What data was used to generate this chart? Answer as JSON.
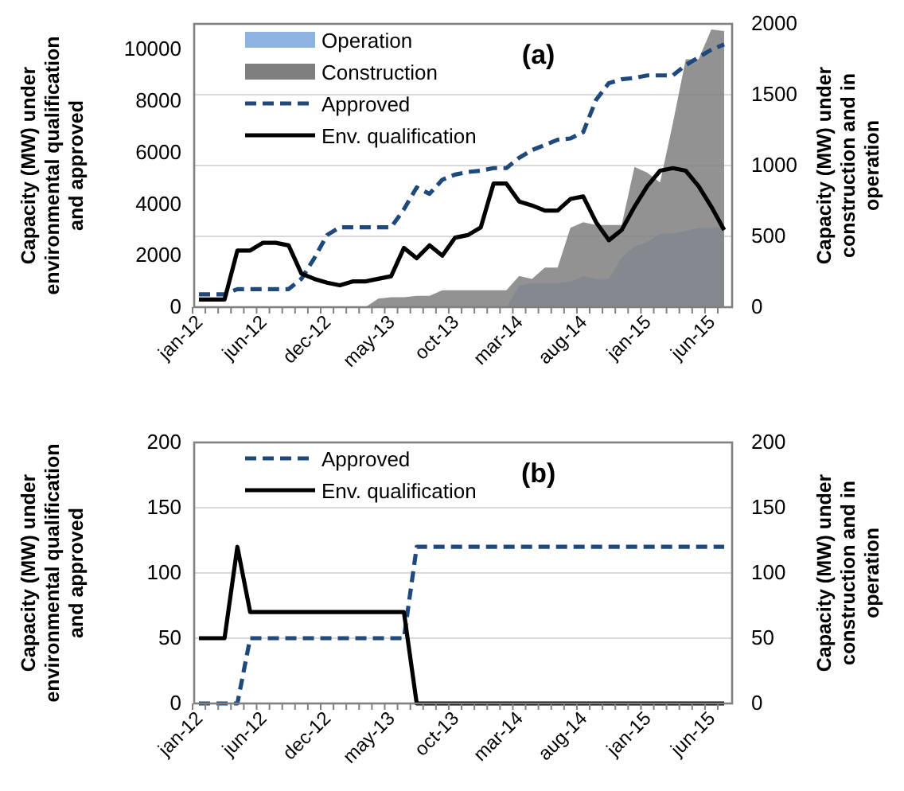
{
  "chart_data": [
    {
      "type": "line",
      "title": "(a)",
      "ylabel": "Capacity (MW) under environmental qualification and approved",
      "y2label": "Capacity (MW) under construction and in operation",
      "categories": [
        "jan-12",
        null,
        null,
        null,
        null,
        "jun-12",
        null,
        null,
        null,
        null,
        "dec-12",
        null,
        null,
        null,
        null,
        "may-13",
        null,
        null,
        null,
        null,
        "oct-13",
        null,
        null,
        null,
        null,
        "mar-14",
        null,
        null,
        null,
        null,
        "aug-14",
        null,
        null,
        null,
        null,
        "jan-15",
        null,
        null,
        null,
        null,
        "jun-15",
        null
      ],
      "ylim": [
        0,
        11000
      ],
      "yticks": [
        0,
        2000,
        4000,
        6000,
        8000,
        10000
      ],
      "y2lim": [
        0,
        2000
      ],
      "y2ticks": [
        0,
        500,
        1000,
        1500,
        2000
      ],
      "grid": true,
      "legend": "top left",
      "marker": "none",
      "series": [
        {
          "name": "Operation",
          "type": "area",
          "axis": "y2",
          "color": "#8db4e2",
          "values": [
            0,
            0,
            0,
            0,
            0,
            0,
            0,
            0,
            0,
            0,
            0,
            0,
            0,
            0,
            0,
            0,
            0,
            0,
            0,
            0,
            0,
            0,
            0,
            0,
            0,
            150,
            170,
            170,
            170,
            180,
            220,
            200,
            200,
            350,
            430,
            460,
            520,
            520,
            540,
            560,
            560,
            570
          ]
        },
        {
          "name": "Construction",
          "type": "area",
          "axis": "y2",
          "color": "#7f7f7f",
          "values": [
            0,
            0,
            0,
            0,
            0,
            0,
            0,
            0,
            0,
            0,
            0,
            0,
            0,
            0,
            60,
            70,
            70,
            80,
            80,
            120,
            120,
            120,
            120,
            120,
            120,
            220,
            200,
            280,
            280,
            560,
            600,
            580,
            580,
            580,
            990,
            950,
            880,
            1300,
            1750,
            1750,
            1960,
            1950
          ]
        },
        {
          "name": "Approved",
          "color": "#1f497d",
          "line_style": "dashed",
          "values": [
            500,
            500,
            500,
            700,
            700,
            700,
            700,
            700,
            1100,
            1900,
            2800,
            3100,
            3100,
            3100,
            3100,
            3100,
            3800,
            4650,
            4400,
            4950,
            5150,
            5250,
            5300,
            5400,
            5400,
            5800,
            6100,
            6300,
            6500,
            6550,
            6800,
            8050,
            8700,
            8850,
            8900,
            9000,
            9000,
            9000,
            9400,
            9700,
            10000,
            10200
          ]
        },
        {
          "name": "Env. qualification",
          "color": "#000000",
          "line_style": "solid",
          "values": [
            300,
            300,
            300,
            2200,
            2200,
            2500,
            2500,
            2400,
            1300,
            1100,
            950,
            850,
            1000,
            1000,
            1100,
            1200,
            2300,
            1900,
            2400,
            2000,
            2700,
            2800,
            3100,
            4800,
            4800,
            4100,
            3950,
            3750,
            3750,
            4200,
            4300,
            3300,
            2600,
            3000,
            3900,
            4700,
            5300,
            5400,
            5300,
            4700,
            3900,
            3000
          ]
        }
      ]
    },
    {
      "type": "line",
      "title": "(b)",
      "ylabel": "Capacity (MW) under environmental qualification and approved",
      "y2label": "Capacity (MW) under construction and in operation",
      "categories": [
        "jan-12",
        null,
        null,
        null,
        null,
        "jun-12",
        null,
        null,
        null,
        null,
        "dec-12",
        null,
        null,
        null,
        null,
        "may-13",
        null,
        null,
        null,
        null,
        "oct-13",
        null,
        null,
        null,
        null,
        "mar-14",
        null,
        null,
        null,
        null,
        "aug-14",
        null,
        null,
        null,
        null,
        "jan-15",
        null,
        null,
        null,
        null,
        "jun-15",
        null
      ],
      "ylim": [
        0,
        200
      ],
      "yticks": [
        0,
        50,
        100,
        150,
        200
      ],
      "y2lim": [
        0,
        200
      ],
      "y2ticks": [
        0,
        50,
        100,
        150,
        200
      ],
      "grid": true,
      "legend": "top left",
      "marker": "none",
      "series": [
        {
          "name": "Approved",
          "color": "#1f497d",
          "line_style": "dashed",
          "values": [
            0,
            0,
            0,
            0,
            50,
            50,
            50,
            50,
            50,
            50,
            50,
            50,
            50,
            50,
            50,
            50,
            50,
            120,
            120,
            120,
            120,
            120,
            120,
            120,
            120,
            120,
            120,
            120,
            120,
            120,
            120,
            120,
            120,
            120,
            120,
            120,
            120,
            120,
            120,
            120,
            120,
            120
          ]
        },
        {
          "name": "Env. qualification",
          "color": "#000000",
          "line_style": "solid",
          "values": [
            50,
            50,
            50,
            120,
            70,
            70,
            70,
            70,
            70,
            70,
            70,
            70,
            70,
            70,
            70,
            70,
            70,
            0,
            0,
            0,
            0,
            0,
            0,
            0,
            0,
            0,
            0,
            0,
            0,
            0,
            0,
            0,
            0,
            0,
            0,
            0,
            0,
            0,
            0,
            0,
            0,
            0
          ]
        }
      ]
    }
  ]
}
